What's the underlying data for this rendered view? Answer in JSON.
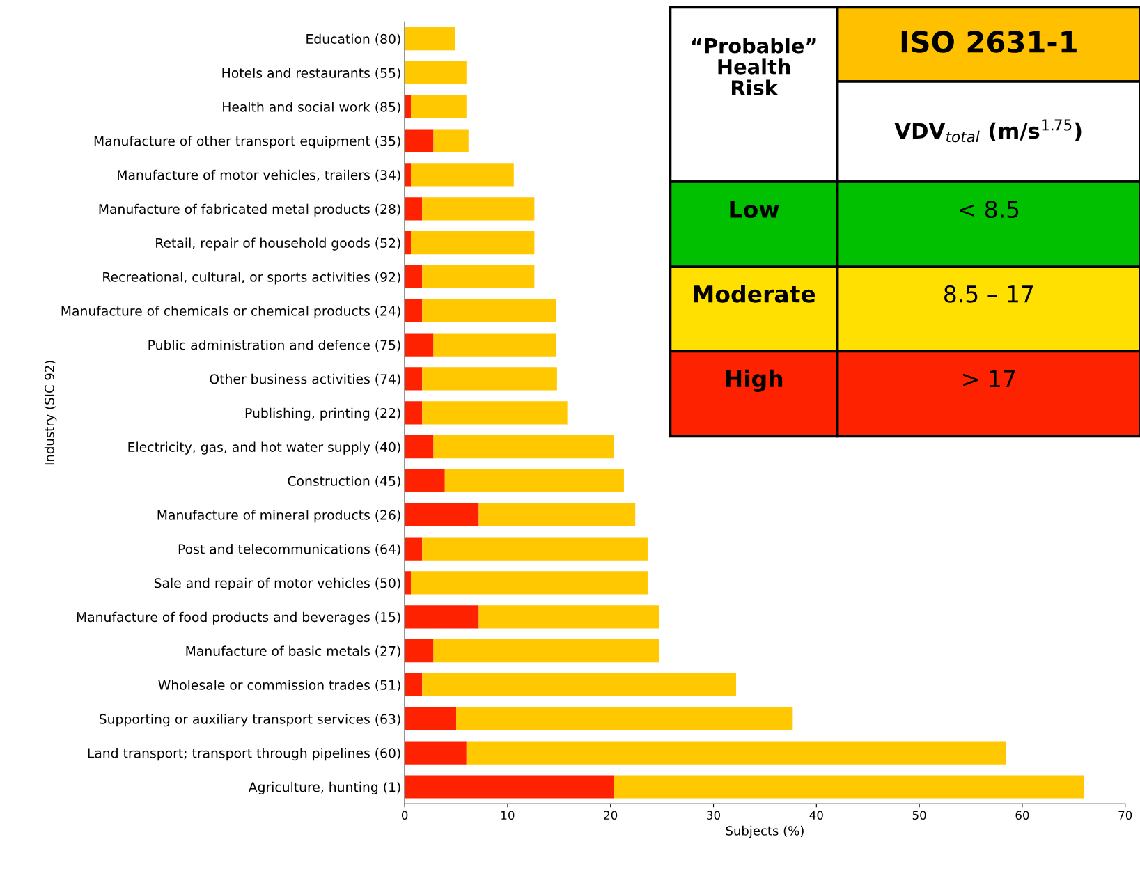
{
  "chart_data": {
    "type": "bar",
    "orientation": "horizontal",
    "stacked": true,
    "categories": [
      "Education (80)",
      "Hotels and restaurants (55)",
      "Health and social work (85)",
      "Manufacture of other transport equipment (35)",
      "Manufacture of motor vehicles, trailers (34)",
      "Manufacture of fabricated metal products (28)",
      "Retail, repair of household goods (52)",
      "Recreational, cultural, or sports activities (92)",
      "Manufacture of chemicals or chemical products (24)",
      "Public administration and defence (75)",
      "Other business activities (74)",
      "Publishing, printing (22)",
      "Electricity, gas, and hot water supply (40)",
      "Construction (45)",
      "Manufacture of mineral products (26)",
      "Post and telecommunications (64)",
      "Sale and repair of motor vehicles (50)",
      "Manufacture of food products and beverages (15)",
      "Manufacture of basic metals (27)",
      "Wholesale or commission trades (51)",
      "Supporting or auxiliary transport services (63)",
      "Land transport; transport through pipelines (60)",
      "Agriculture, hunting (1)"
    ],
    "series": [
      {
        "color": "#ff2200",
        "values": [
          0,
          0,
          0.6,
          2.8,
          0.6,
          1.7,
          0.6,
          1.7,
          1.7,
          2.8,
          1.7,
          1.7,
          2.8,
          3.9,
          7.2,
          1.7,
          0.6,
          7.2,
          2.8,
          1.7,
          5.0,
          6.0,
          20.3
        ]
      },
      {
        "color": "#ffc800",
        "values": [
          4.9,
          6.0,
          5.4,
          3.4,
          10.0,
          10.9,
          12.0,
          10.9,
          13.0,
          11.9,
          13.1,
          14.1,
          17.5,
          17.4,
          15.2,
          21.9,
          23.0,
          17.5,
          21.9,
          30.5,
          32.7,
          52.4,
          45.7
        ]
      }
    ],
    "xlim": [
      0,
      70
    ],
    "xticks": [
      0,
      10,
      20,
      30,
      40,
      50,
      60,
      70
    ],
    "xlabel": "Subjects (%)",
    "ylabel": "Industry (SIC 92)",
    "grid": false,
    "legend": false,
    "annotations": [
      "“Probable” Health Risk",
      "ISO 2631-1",
      "VDV$_{total}$ (m/s$^{1.75}$)",
      "Low",
      "< 8.5",
      "Moderate",
      "8.5 – 17",
      "High",
      "> 17"
    ]
  }
}
